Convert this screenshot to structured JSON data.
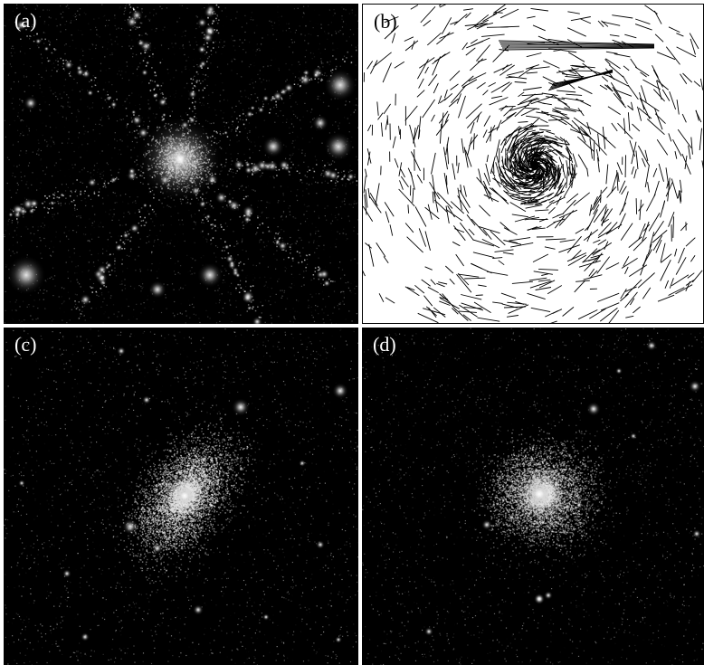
{
  "figure": {
    "panels": [
      {
        "id": "a",
        "label": "(a)",
        "kind": "filamentary-density-map"
      },
      {
        "id": "b",
        "label": "(b)",
        "kind": "velocity-vector-field"
      },
      {
        "id": "c",
        "label": "(c)",
        "kind": "elongated-halo"
      },
      {
        "id": "d",
        "label": "(d)",
        "kind": "spherical-halo"
      }
    ]
  }
}
